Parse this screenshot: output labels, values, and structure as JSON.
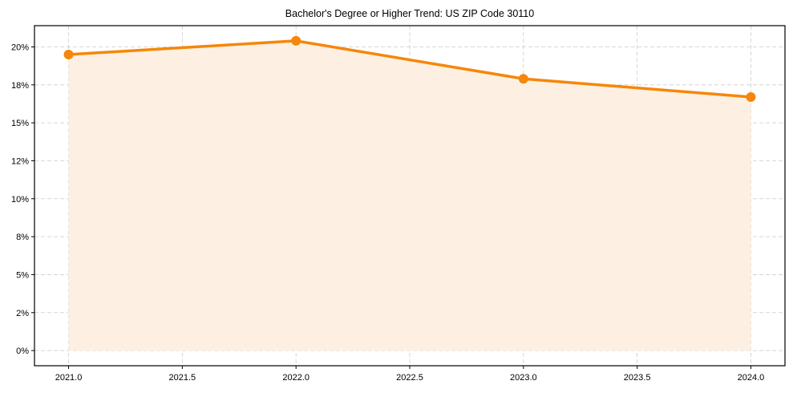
{
  "chart_data": {
    "type": "area",
    "title": "Bachelor's Degree or Higher Trend: US ZIP Code 30110",
    "xlabel": "",
    "ylabel": "",
    "x": [
      2021.0,
      2022.0,
      2023.0,
      2024.0
    ],
    "series": [
      {
        "name": "Bachelor's Degree or Higher",
        "values": [
          19.5,
          20.4,
          17.9,
          16.7
        ],
        "unit": "%"
      }
    ],
    "xlim": [
      2020.85,
      2024.15
    ],
    "ylim": [
      -1.0,
      21.4
    ],
    "x_ticks": [
      2021.0,
      2021.5,
      2022.0,
      2022.5,
      2023.0,
      2023.5,
      2024.0
    ],
    "x_tick_labels": [
      "2021.0",
      "2021.5",
      "2022.0",
      "2022.5",
      "2023.0",
      "2023.5",
      "2024.0"
    ],
    "y_ticks": [
      0,
      2.5,
      5,
      7.5,
      10,
      12.5,
      15,
      17.5,
      20
    ],
    "y_tick_labels": [
      "0%",
      "2%",
      "5%",
      "8%",
      "10%",
      "12%",
      "15%",
      "18%",
      "20%"
    ],
    "grid": true,
    "legend": null,
    "colors": {
      "line": "#f5870a",
      "fill": "#fdf0e2",
      "grid": "#cccccc",
      "axis": "#000000"
    }
  }
}
